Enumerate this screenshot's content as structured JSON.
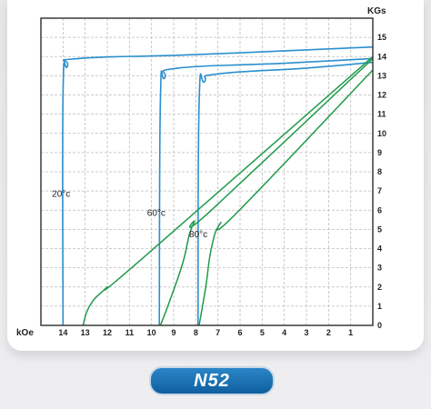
{
  "chart_data": {
    "type": "line",
    "title": "",
    "xlabel": "kOe",
    "ylabel": "KGs",
    "xlim": [
      15,
      0
    ],
    "ylim": [
      0,
      16
    ],
    "x_ticks": [
      14,
      13,
      12,
      11,
      10,
      9,
      8,
      7,
      6,
      5,
      4,
      3,
      2,
      1
    ],
    "y_ticks": [
      0,
      1,
      2,
      3,
      4,
      5,
      6,
      7,
      8,
      9,
      10,
      11,
      12,
      13,
      14,
      15
    ],
    "grid": true,
    "colors": {
      "intrinsic": "#2a8fcf",
      "normal": "#1f9a4a",
      "grid": "#bdbdbd",
      "frame": "#3a3a3a"
    },
    "series": [
      {
        "name": "20°c",
        "curve": "intrinsic",
        "label_at": [
          14.5,
          6.7
        ],
        "points": [
          [
            14.0,
            0
          ],
          [
            14.0,
            12.0
          ],
          [
            13.8,
            13.5
          ],
          [
            13.3,
            13.9
          ],
          [
            8.0,
            14.1
          ],
          [
            0,
            14.5
          ]
        ]
      },
      {
        "name": "60°c",
        "curve": "intrinsic",
        "label_at": [
          10.2,
          5.7
        ],
        "points": [
          [
            9.65,
            0
          ],
          [
            9.6,
            11.7
          ],
          [
            9.4,
            12.9
          ],
          [
            8.8,
            13.4
          ],
          [
            4.0,
            13.65
          ],
          [
            0,
            13.9
          ]
        ]
      },
      {
        "name": "80°c",
        "curve": "intrinsic",
        "label_at": [
          8.3,
          4.6
        ],
        "points": [
          [
            7.9,
            0
          ],
          [
            7.85,
            11.6
          ],
          [
            7.6,
            12.7
          ],
          [
            7.0,
            13.1
          ],
          [
            3.0,
            13.4
          ],
          [
            0,
            13.7
          ]
        ]
      },
      {
        "curve": "normal",
        "points": [
          [
            13.1,
            0
          ],
          [
            12.8,
            1.0
          ],
          [
            12.1,
            1.9
          ],
          [
            10.5,
            3.4
          ],
          [
            0,
            14.0
          ]
        ]
      },
      {
        "curve": "normal",
        "points": [
          [
            9.6,
            0
          ],
          [
            9.2,
            1.2
          ],
          [
            8.6,
            3.2
          ],
          [
            8.1,
            5.3
          ],
          [
            7.3,
            6.0
          ],
          [
            0,
            13.9
          ]
        ]
      },
      {
        "curve": "normal",
        "points": [
          [
            7.85,
            0
          ],
          [
            7.55,
            2.0
          ],
          [
            7.3,
            4.0
          ],
          [
            6.9,
            5.3
          ],
          [
            6.2,
            5.8
          ],
          [
            0,
            13.3
          ]
        ]
      }
    ]
  },
  "badge": {
    "label": "N52"
  }
}
